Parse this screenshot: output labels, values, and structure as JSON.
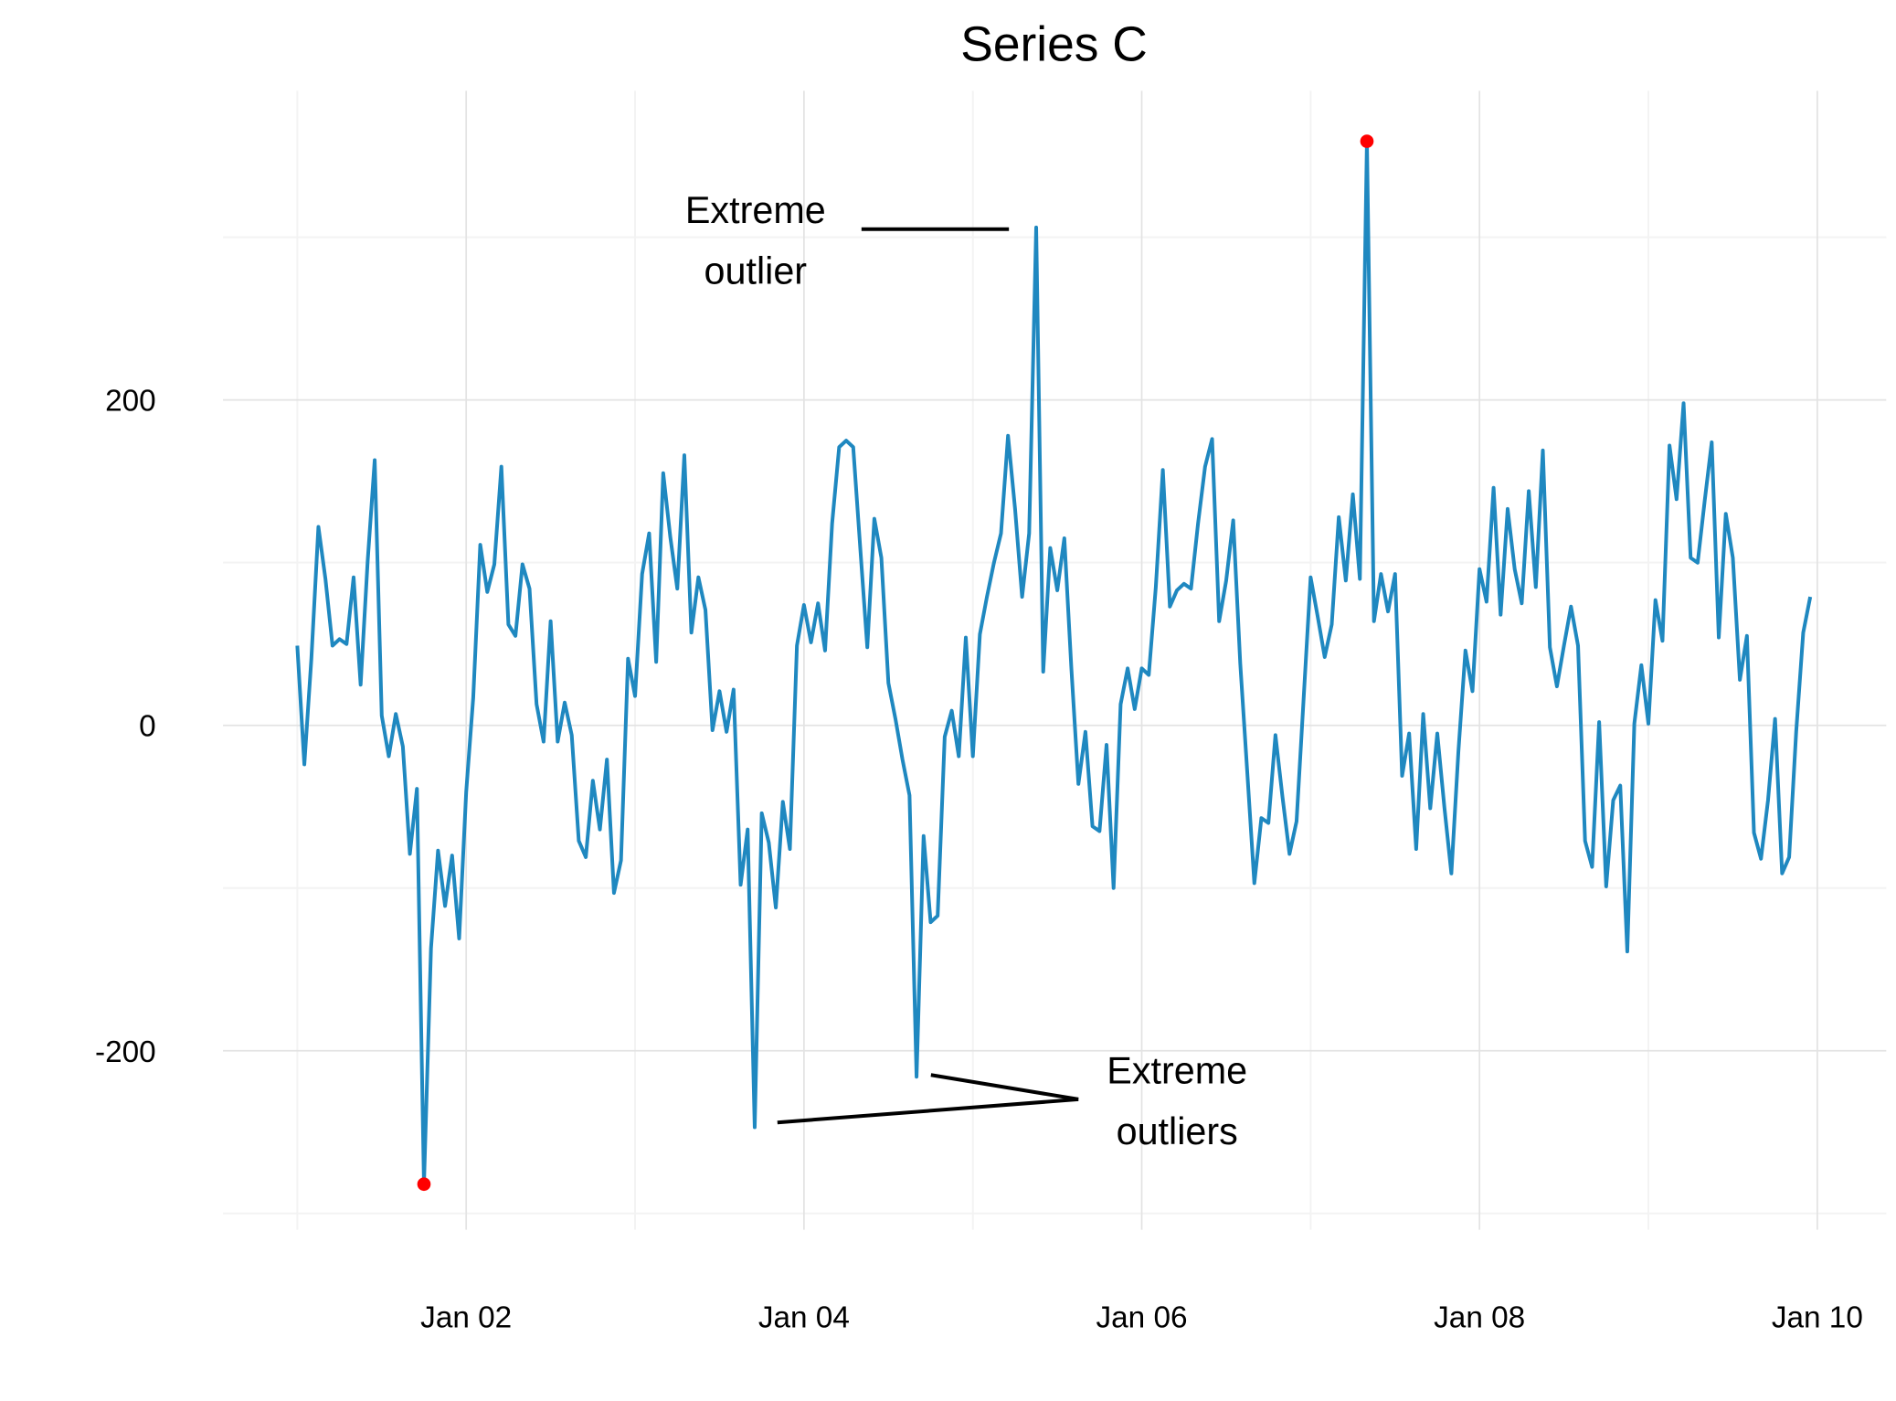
{
  "chart_data": {
    "type": "line",
    "title": "Series C",
    "x": [
      0,
      1,
      2,
      3,
      4,
      5,
      6,
      7,
      8,
      9,
      10,
      11,
      12,
      13,
      14,
      15,
      16,
      17,
      18,
      19,
      20,
      21,
      22,
      23,
      24,
      25,
      26,
      27,
      28,
      29,
      30,
      31,
      32,
      33,
      34,
      35,
      36,
      37,
      38,
      39,
      40,
      41,
      42,
      43,
      44,
      45,
      46,
      47,
      48,
      49,
      50,
      51,
      52,
      53,
      54,
      55,
      56,
      57,
      58,
      59,
      60,
      61,
      62,
      63,
      64,
      65,
      66,
      67,
      68,
      69,
      70,
      71,
      72,
      73,
      74,
      75,
      76,
      77,
      78,
      79,
      80,
      81,
      82,
      83,
      84,
      85,
      86,
      87,
      88,
      89,
      90,
      91,
      92,
      93,
      94,
      95,
      96,
      97,
      98,
      99,
      100,
      101,
      102,
      103,
      104,
      105,
      106,
      107,
      108,
      109,
      110,
      111,
      112,
      113,
      114,
      115,
      116,
      117,
      118,
      119,
      120,
      121,
      122,
      123,
      124,
      125,
      126,
      127,
      128,
      129,
      130,
      131,
      132,
      133,
      134,
      135,
      136,
      137,
      138,
      139,
      140,
      141,
      142,
      143,
      144,
      145,
      146,
      147,
      148,
      149,
      150,
      151,
      152,
      153,
      154,
      155,
      156,
      157,
      158,
      159,
      160,
      161,
      162,
      163,
      164,
      165,
      166,
      167,
      168,
      169,
      170,
      171,
      172,
      173,
      174,
      175,
      176,
      177,
      178,
      179,
      180,
      181,
      182,
      183,
      184,
      185,
      186,
      187,
      188,
      189,
      190,
      191,
      192,
      193,
      194,
      195,
      196,
      197,
      198,
      199,
      200,
      201,
      202,
      203,
      204,
      205,
      206,
      207,
      208,
      209,
      210,
      211,
      212,
      213,
      214,
      215
    ],
    "series": [
      {
        "name": "Series C",
        "color": "#1f88c0",
        "values": [
          49,
          -24,
          41,
          122,
          90,
          49,
          53,
          50,
          91,
          25,
          101,
          163,
          6,
          -19,
          7,
          -13,
          -79,
          -39,
          -282,
          -137,
          -77,
          -111,
          -80,
          -131,
          -41,
          17,
          111,
          82,
          99,
          159,
          62,
          55,
          99,
          84,
          13,
          -10,
          64,
          -10,
          14,
          -6,
          -71,
          -81,
          -34,
          -64,
          -21,
          -103,
          -83,
          41,
          18,
          93,
          118,
          39,
          155,
          116,
          84,
          166,
          57,
          91,
          71,
          -3,
          21,
          -4,
          22,
          -98,
          -64,
          -247,
          -54,
          -72,
          -112,
          -47,
          -76,
          49,
          74,
          51,
          75,
          46,
          124,
          171,
          175,
          171,
          109,
          48,
          127,
          103,
          26,
          4,
          -21,
          -43,
          -216,
          -68,
          -121,
          -117,
          -7,
          9,
          -19,
          54,
          -19,
          56,
          79,
          100,
          118,
          178,
          133,
          79,
          118,
          306,
          33,
          109,
          83,
          115,
          35,
          -36,
          -4,
          -62,
          -65,
          -12,
          -100,
          13,
          35,
          10,
          35,
          31,
          85,
          157,
          73,
          83,
          87,
          84,
          124,
          159,
          176,
          64,
          89,
          126,
          38,
          -29,
          -97,
          -57,
          -60,
          -6,
          -44,
          -79,
          -59,
          16,
          91,
          67,
          42,
          62,
          128,
          89,
          142,
          90,
          359,
          64,
          93,
          70,
          93,
          -31,
          -5,
          -76,
          7,
          -51,
          -5,
          -50,
          -91,
          -16,
          46,
          21,
          96,
          76,
          146,
          68,
          133,
          96,
          75,
          144,
          85,
          169,
          48,
          24,
          49,
          73,
          49,
          -71,
          -87,
          2,
          -99,
          -46,
          -37,
          -139,
          1,
          37,
          1,
          77,
          52,
          172,
          139,
          198,
          103,
          100,
          138,
          174,
          54,
          130,
          103,
          28,
          55,
          -66,
          -82,
          -46,
          4,
          -91,
          -81,
          -4,
          57,
          79
        ]
      }
    ],
    "xlim": [
      -10.56,
      225.8
    ],
    "xticks": [
      {
        "value": 24,
        "label": "Jan 02"
      },
      {
        "value": 72,
        "label": "Jan 04"
      },
      {
        "value": 120,
        "label": "Jan 06"
      },
      {
        "value": 168,
        "label": "Jan 08"
      },
      {
        "value": 216,
        "label": "Jan 10"
      }
    ],
    "ylim": [
      -310,
      390
    ],
    "yticks": [
      -200,
      0,
      200
    ],
    "grid": true,
    "highlight_extremes": true,
    "highlight_color": "#ff0000",
    "annotations": [
      {
        "lines": [
          "Extreme",
          "outlier"
        ]
      },
      {
        "lines": [
          "Extreme",
          "outliers"
        ]
      }
    ]
  }
}
